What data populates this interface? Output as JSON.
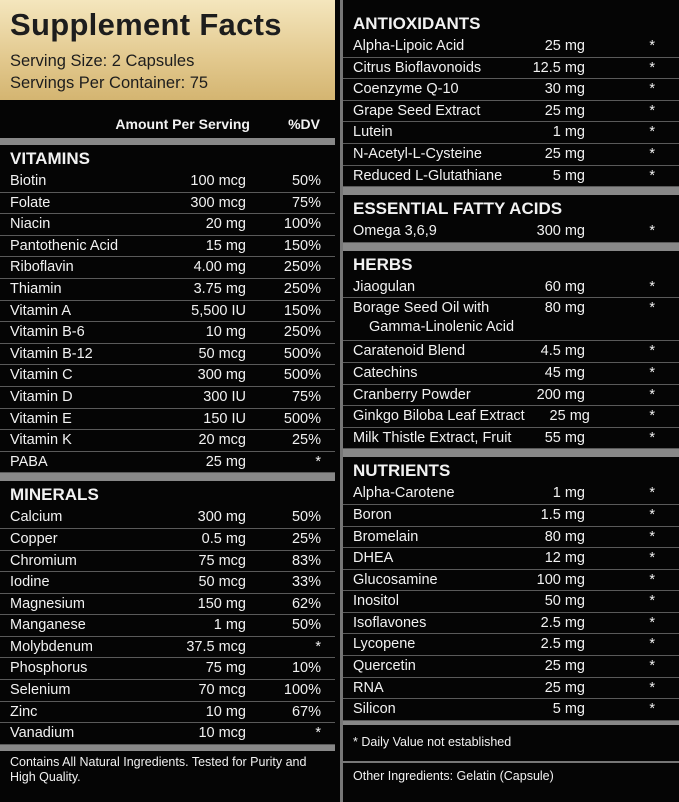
{
  "header": {
    "title": "Supplement Facts",
    "serving_size": "Serving Size: 2 Capsules",
    "servings_per_container": "Servings Per Container: 75"
  },
  "column_headers": {
    "amount": "Amount Per Serving",
    "dv": "%DV"
  },
  "left_sections": [
    {
      "title": "VITAMINS",
      "rows": [
        {
          "name": "Biotin",
          "amount": "100 mcg",
          "dv": "50%"
        },
        {
          "name": "Folate",
          "amount": "300 mcg",
          "dv": "75%"
        },
        {
          "name": "Niacin",
          "amount": "20 mg",
          "dv": "100%"
        },
        {
          "name": "Pantothenic Acid",
          "amount": "15 mg",
          "dv": "150%"
        },
        {
          "name": "Riboflavin",
          "amount": "4.00 mg",
          "dv": "250%"
        },
        {
          "name": "Thiamin",
          "amount": "3.75 mg",
          "dv": "250%"
        },
        {
          "name": "Vitamin A",
          "amount": "5,500 IU",
          "dv": "150%"
        },
        {
          "name": "Vitamin B-6",
          "amount": "10 mg",
          "dv": "250%"
        },
        {
          "name": "Vitamin B-12",
          "amount": "50 mcg",
          "dv": "500%"
        },
        {
          "name": "Vitamin C",
          "amount": "300 mg",
          "dv": "500%"
        },
        {
          "name": "Vitamin D",
          "amount": "300 IU",
          "dv": "75%"
        },
        {
          "name": "Vitamin E",
          "amount": "150 IU",
          "dv": "500%"
        },
        {
          "name": "Vitamin K",
          "amount": "20 mcg",
          "dv": "25%"
        },
        {
          "name": "PABA",
          "amount": "25 mg",
          "dv": "*"
        }
      ]
    },
    {
      "title": "MINERALS",
      "rows": [
        {
          "name": "Calcium",
          "amount": "300 mg",
          "dv": "50%"
        },
        {
          "name": "Copper",
          "amount": "0.5 mg",
          "dv": "25%"
        },
        {
          "name": "Chromium",
          "amount": "75 mcg",
          "dv": "83%"
        },
        {
          "name": "Iodine",
          "amount": "50 mcg",
          "dv": "33%"
        },
        {
          "name": "Magnesium",
          "amount": "150 mg",
          "dv": "62%"
        },
        {
          "name": "Manganese",
          "amount": "1 mg",
          "dv": "50%"
        },
        {
          "name": "Molybdenum",
          "amount": "37.5 mcg",
          "dv": "*"
        },
        {
          "name": "Phosphorus",
          "amount": "75 mg",
          "dv": "10%"
        },
        {
          "name": "Selenium",
          "amount": "70 mcg",
          "dv": "100%"
        },
        {
          "name": "Zinc",
          "amount": "10 mg",
          "dv": "67%"
        },
        {
          "name": "Vanadium",
          "amount": "10 mcg",
          "dv": "*"
        }
      ]
    }
  ],
  "left_footer": "Contains All Natural Ingredients.  Tested for Purity and High Quality.",
  "right_sections": [
    {
      "title": "ANTIOXIDANTS",
      "rows": [
        {
          "name": "Alpha-Lipoic Acid",
          "amount": "25 mg",
          "dv": "*"
        },
        {
          "name": "Citrus Bioflavonoids",
          "amount": "12.5 mg",
          "dv": "*"
        },
        {
          "name": "Coenzyme Q-10",
          "amount": "30 mg",
          "dv": "*"
        },
        {
          "name": "Grape Seed Extract",
          "amount": "25 mg",
          "dv": "*"
        },
        {
          "name": "Lutein",
          "amount": "1 mg",
          "dv": "*"
        },
        {
          "name": "N-Acetyl-L-Cysteine",
          "amount": "25 mg",
          "dv": "*"
        },
        {
          "name": "Reduced L-Glutathiane",
          "amount": "5 mg",
          "dv": "*"
        }
      ]
    },
    {
      "title": "ESSENTIAL FATTY ACIDS",
      "rows": [
        {
          "name": "Omega 3,6,9",
          "amount": "300 mg",
          "dv": "*"
        }
      ]
    },
    {
      "title": "HERBS",
      "rows": [
        {
          "name": "Jiaogulan",
          "amount": "60 mg",
          "dv": "*"
        },
        {
          "name": "Borage Seed Oil with\nGamma-Linolenic Acid",
          "amount": "80 mg",
          "dv": "*"
        },
        {
          "name": "Caratenoid Blend",
          "amount": "4.5 mg",
          "dv": "*"
        },
        {
          "name": "Catechins",
          "amount": "45 mg",
          "dv": "*"
        },
        {
          "name": "Cranberry Powder",
          "amount": "200 mg",
          "dv": "*"
        },
        {
          "name": "Ginkgo Biloba Leaf Extract",
          "amount": "25 mg",
          "dv": "*"
        },
        {
          "name": "Milk Thistle Extract, Fruit",
          "amount": "55 mg",
          "dv": "*"
        }
      ]
    },
    {
      "title": "NUTRIENTS",
      "rows": [
        {
          "name": "Alpha-Carotene",
          "amount": "1 mg",
          "dv": "*"
        },
        {
          "name": "Boron",
          "amount": "1.5 mg",
          "dv": "*"
        },
        {
          "name": "Bromelain",
          "amount": "80 mg",
          "dv": "*"
        },
        {
          "name": "DHEA",
          "amount": "12 mg",
          "dv": "*"
        },
        {
          "name": "Glucosamine",
          "amount": "100 mg",
          "dv": "*"
        },
        {
          "name": "Inositol",
          "amount": "50 mg",
          "dv": "*"
        },
        {
          "name": "Isoflavones",
          "amount": "2.5 mg",
          "dv": "*"
        },
        {
          "name": "Lycopene",
          "amount": "2.5 mg",
          "dv": "*"
        },
        {
          "name": "Quercetin",
          "amount": "25 mg",
          "dv": "*"
        },
        {
          "name": "RNA",
          "amount": "25 mg",
          "dv": "*"
        },
        {
          "name": "Silicon",
          "amount": "5 mg",
          "dv": "*"
        }
      ]
    }
  ],
  "footnote": "* Daily Value not established",
  "other_ingredients": "Other Ingredients: Gelatin (Capsule)"
}
